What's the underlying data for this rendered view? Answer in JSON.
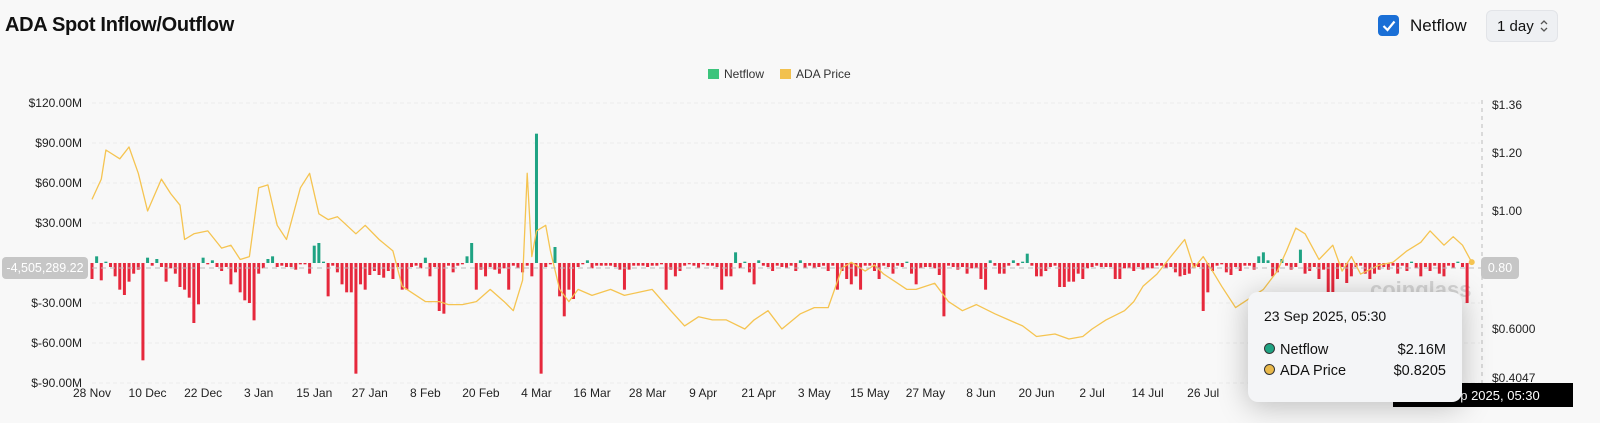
{
  "header": {
    "title": "ADA Spot Inflow/Outflow",
    "checkbox_label": "Netflow",
    "checkbox_checked": true,
    "interval": "1 day"
  },
  "legend": [
    {
      "label": "Netflow",
      "color": "#3cc47c"
    },
    {
      "label": "ADA Price",
      "color": "#f2c14e"
    }
  ],
  "colors": {
    "positive": "#1fa383",
    "negative": "#e6283c",
    "price": "#f5c451"
  },
  "crosshair": {
    "left_value": "-4,505,289.22",
    "right_value": "0.80",
    "x_label": "23 Sep 2025, 05:30"
  },
  "tooltip": {
    "date": "23 Sep 2025, 05:30",
    "rows": [
      {
        "label": "Netflow",
        "value": "$2.16M",
        "color": "#1fa383"
      },
      {
        "label": "ADA Price",
        "value": "$0.8205",
        "color": "#e8b84a"
      }
    ]
  },
  "watermark": "coinglass",
  "chart_data": {
    "type": "bar+line",
    "title": "ADA Spot Inflow/Outflow",
    "x_ticks": [
      "28 Nov",
      "10 Dec",
      "22 Dec",
      "3 Jan",
      "15 Jan",
      "27 Jan",
      "8 Feb",
      "20 Feb",
      "4 Mar",
      "16 Mar",
      "28 Mar",
      "9 Apr",
      "21 Apr",
      "3 May",
      "15 May",
      "27 May",
      "8 Jun",
      "20 Jun",
      "2 Jul",
      "14 Jul",
      "26 Jul"
    ],
    "x_tick_step_days": 12,
    "y_left": {
      "label": "Netflow (USD)",
      "ticks": [
        "$120.00M",
        "$90.00M",
        "$60.00M",
        "$30.00M",
        "$-30.00M",
        "$-60.00M",
        "$-90.00M"
      ],
      "tick_values": [
        120,
        90,
        60,
        30,
        -30,
        -60,
        -90
      ],
      "range": [
        -90,
        120
      ],
      "unit": "M USD"
    },
    "y_right": {
      "label": "ADA Price",
      "ticks": [
        "$1.36",
        "$1.20",
        "$1.00",
        "$0.6000",
        "$0.4047"
      ],
      "tick_values": [
        1.36,
        1.2,
        1.0,
        0.6,
        0.4047
      ],
      "range": [
        0.4047,
        1.36
      ]
    },
    "series": [
      {
        "name": "Netflow",
        "type": "bar",
        "unit": "M USD",
        "start": "28 Nov 2024",
        "values": [
          -12,
          5,
          -13,
          1,
          -3,
          -10,
          -20,
          -24,
          -14,
          -8,
          -5,
          -73,
          4,
          -2,
          3,
          -3,
          -14,
          -4,
          -8,
          -18,
          -20,
          -26,
          -45,
          -31,
          4,
          -1,
          2,
          -3,
          -6,
          -3,
          -16,
          -7,
          -22,
          -28,
          -30,
          -43,
          -8,
          -4,
          3,
          5,
          -3,
          -2,
          -3,
          -3,
          -5,
          -1,
          -1,
          -8,
          13,
          15,
          1,
          -25,
          -2,
          -7,
          -16,
          -22,
          -22,
          -83,
          -16,
          -20,
          -9,
          -6,
          -9,
          -11,
          -6,
          -12,
          -3,
          -20,
          -20,
          -3,
          -2,
          -4,
          4,
          -10,
          -3,
          -36,
          -38,
          -2,
          -7,
          -2,
          -1,
          5,
          15,
          -20,
          -5,
          -10,
          -3,
          -5,
          -8,
          -4,
          -20,
          -2,
          -4,
          -7,
          -2,
          -10,
          97,
          -83,
          -3,
          -1,
          12,
          -25,
          -40,
          -20,
          -27,
          -3,
          -1,
          2,
          -4,
          -2,
          -2,
          -2,
          -2,
          -3,
          -5,
          -20,
          -5,
          -2,
          -2,
          -2,
          -3,
          -2,
          -2,
          -1,
          -20,
          -5,
          -10,
          -6,
          -2,
          -1,
          -2,
          -4,
          -1,
          -2,
          -2,
          -3,
          -20,
          -10,
          -10,
          8,
          -4,
          1,
          -7,
          -16,
          2,
          -2,
          -3,
          -6,
          -2,
          -3,
          -4,
          -2,
          -6,
          2,
          -4,
          -2,
          -4,
          -3,
          -2,
          -6,
          -2,
          -20,
          -6,
          -12,
          -16,
          -10,
          -20,
          -2,
          -2,
          -6,
          -12,
          -2,
          -3,
          -8,
          -2,
          -3,
          1,
          -8,
          -16,
          -4,
          -3,
          -3,
          -4,
          -9,
          -40,
          -2,
          -3,
          -5,
          -3,
          -8,
          -4,
          -4,
          -12,
          -20,
          2,
          -2,
          -8,
          -8,
          -2,
          2,
          -2,
          1,
          7,
          -2,
          -10,
          -10,
          -6,
          -3,
          -2,
          -18,
          -18,
          -14,
          -14,
          -8,
          -12,
          -4,
          -3,
          -2,
          -3,
          -3,
          -3,
          -12,
          -12,
          -4,
          -4,
          -6,
          -3,
          -5,
          -4,
          -4,
          -2,
          -2,
          -4,
          -3,
          -7,
          -10,
          -9,
          -8,
          -4,
          -3,
          -36,
          -22,
          -6,
          -2,
          -1,
          -7,
          -9,
          -3,
          -6,
          -2,
          -2,
          -5,
          5,
          8,
          2,
          -10,
          -7,
          3,
          -2,
          -5,
          -3,
          10,
          -8,
          -6,
          -3,
          -12,
          -5,
          -30,
          -25,
          -12,
          -3,
          -15,
          -10,
          -3,
          -2,
          -8,
          -12,
          -8,
          -5,
          -3,
          -5,
          -2,
          -8,
          -2,
          -6,
          1,
          -4,
          -10,
          -3,
          -6,
          -2,
          -8,
          -10,
          -2,
          -4,
          1,
          -3,
          -30,
          2.16
        ]
      },
      {
        "name": "ADA Price",
        "type": "line",
        "unit": "USD",
        "points_day_price": [
          [
            0,
            1.04
          ],
          [
            2,
            1.11
          ],
          [
            3,
            1.21
          ],
          [
            6,
            1.18
          ],
          [
            8,
            1.22
          ],
          [
            10,
            1.13
          ],
          [
            12,
            1.0
          ],
          [
            15,
            1.11
          ],
          [
            17,
            1.06
          ],
          [
            19,
            1.02
          ],
          [
            20,
            0.9
          ],
          [
            22,
            0.92
          ],
          [
            25,
            0.93
          ],
          [
            28,
            0.87
          ],
          [
            30,
            0.88
          ],
          [
            32,
            0.83
          ],
          [
            34,
            0.84
          ],
          [
            36,
            1.08
          ],
          [
            38,
            1.09
          ],
          [
            40,
            0.95
          ],
          [
            42,
            0.9
          ],
          [
            45,
            1.08
          ],
          [
            47,
            1.13
          ],
          [
            49,
            0.99
          ],
          [
            51,
            0.97
          ],
          [
            53,
            0.98
          ],
          [
            57,
            0.92
          ],
          [
            59,
            0.95
          ],
          [
            62,
            0.9
          ],
          [
            65,
            0.86
          ],
          [
            67,
            0.74
          ],
          [
            70,
            0.71
          ],
          [
            72,
            0.69
          ],
          [
            75,
            0.69
          ],
          [
            77,
            0.68
          ],
          [
            80,
            0.68
          ],
          [
            83,
            0.69
          ],
          [
            86,
            0.73
          ],
          [
            89,
            0.69
          ],
          [
            91,
            0.66
          ],
          [
            93,
            0.76
          ],
          [
            94,
            1.13
          ],
          [
            95,
            0.84
          ],
          [
            96,
            0.93
          ],
          [
            98,
            0.95
          ],
          [
            99,
            0.86
          ],
          [
            101,
            0.73
          ],
          [
            103,
            0.69
          ],
          [
            105,
            0.73
          ],
          [
            108,
            0.71
          ],
          [
            112,
            0.73
          ],
          [
            115,
            0.71
          ],
          [
            118,
            0.72
          ],
          [
            121,
            0.73
          ],
          [
            125,
            0.66
          ],
          [
            128,
            0.61
          ],
          [
            131,
            0.64
          ],
          [
            134,
            0.63
          ],
          [
            137,
            0.63
          ],
          [
            141,
            0.6
          ],
          [
            143,
            0.63
          ],
          [
            146,
            0.66
          ],
          [
            149,
            0.6
          ],
          [
            153,
            0.65
          ],
          [
            156,
            0.67
          ],
          [
            159,
            0.67
          ],
          [
            162,
            0.8
          ],
          [
            164,
            0.82
          ],
          [
            167,
            0.79
          ],
          [
            169,
            0.81
          ],
          [
            171,
            0.78
          ],
          [
            173,
            0.76
          ],
          [
            176,
            0.73
          ],
          [
            178,
            0.73
          ],
          [
            182,
            0.75
          ],
          [
            185,
            0.69
          ],
          [
            188,
            0.66
          ],
          [
            191,
            0.68
          ],
          [
            195,
            0.65
          ],
          [
            198,
            0.63
          ],
          [
            201,
            0.61
          ],
          [
            204,
            0.57
          ],
          [
            208,
            0.58
          ],
          [
            211,
            0.56
          ],
          [
            214,
            0.57
          ],
          [
            216,
            0.6
          ],
          [
            219,
            0.63
          ],
          [
            223,
            0.66
          ],
          [
            225,
            0.69
          ],
          [
            227,
            0.74
          ],
          [
            230,
            0.78
          ],
          [
            233,
            0.84
          ],
          [
            236,
            0.9
          ],
          [
            238,
            0.8
          ],
          [
            240,
            0.84
          ],
          [
            242,
            0.79
          ],
          [
            244,
            0.74
          ],
          [
            247,
            0.67
          ],
          [
            251,
            0.71
          ],
          [
            253,
            0.73
          ],
          [
            256,
            0.79
          ],
          [
            258,
            0.86
          ],
          [
            260,
            0.94
          ],
          [
            262,
            0.92
          ],
          [
            265,
            0.83
          ],
          [
            268,
            0.88
          ],
          [
            270,
            0.79
          ],
          [
            272,
            0.84
          ],
          [
            274,
            0.78
          ],
          [
            278,
            0.81
          ],
          [
            281,
            0.82
          ],
          [
            284,
            0.86
          ],
          [
            287,
            0.89
          ],
          [
            289,
            0.93
          ],
          [
            292,
            0.88
          ],
          [
            294,
            0.91
          ],
          [
            296,
            0.88
          ],
          [
            298,
            0.8205
          ]
        ]
      }
    ],
    "legend_position": "top-center",
    "grid": true
  }
}
